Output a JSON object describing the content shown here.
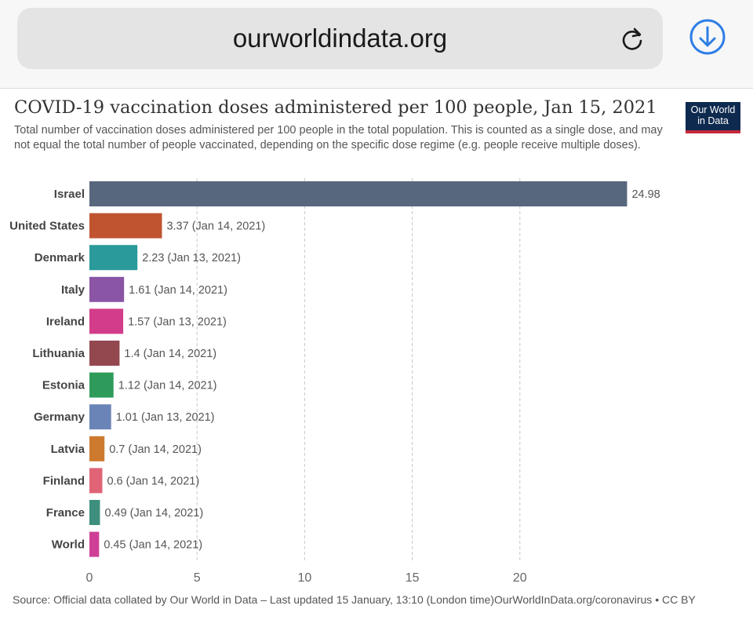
{
  "browser": {
    "url": "ourworldindata.org",
    "reload_icon": "reload-icon",
    "download_icon": "download-icon",
    "accent": "#2e7ee6"
  },
  "logo": {
    "line1": "Our World",
    "line2": "in Data"
  },
  "title": "COVID-19 vaccination doses administered per 100 people, Jan 15, 2021",
  "subtitle": "Total number of vaccination doses administered per 100 people in the total population. This is counted as a single dose, and may not equal the total number of people vaccinated, depending on the specific dose regime (e.g. people receive multiple doses).",
  "source": "Source: Official data collated by Our World in Data – Last updated 15 January, 13:10 (London time)",
  "source_link": "OurWorldInData.org/coronavirus • CC BY",
  "chart_data": {
    "type": "bar",
    "orientation": "horizontal",
    "categories": [
      "Israel",
      "United States",
      "Denmark",
      "Italy",
      "Ireland",
      "Lithuania",
      "Estonia",
      "Germany",
      "Latvia",
      "Finland",
      "France",
      "World"
    ],
    "values": [
      24.98,
      3.37,
      2.23,
      1.61,
      1.57,
      1.4,
      1.12,
      1.01,
      0.7,
      0.6,
      0.49,
      0.45
    ],
    "labels": [
      "24.98",
      "3.37 (Jan 14, 2021)",
      "2.23 (Jan 13, 2021)",
      "1.61 (Jan 14, 2021)",
      "1.57 (Jan 13, 2021)",
      "1.4 (Jan 14, 2021)",
      "1.12 (Jan 14, 2021)",
      "1.01 (Jan 13, 2021)",
      "0.7 (Jan 14, 2021)",
      "0.6 (Jan 14, 2021)",
      "0.49 (Jan 14, 2021)",
      "0.45 (Jan 14, 2021)"
    ],
    "colors": [
      "#57677e",
      "#c05431",
      "#2a9a9a",
      "#8a55a5",
      "#d23c8a",
      "#93474f",
      "#2e9b5a",
      "#6b84b8",
      "#cd7a2e",
      "#e06476",
      "#3d8e7c",
      "#cf3f96"
    ],
    "xticks": [
      0,
      5,
      10,
      15,
      20
    ],
    "xlim": [
      0,
      25
    ],
    "grid": "vertical dashed"
  }
}
